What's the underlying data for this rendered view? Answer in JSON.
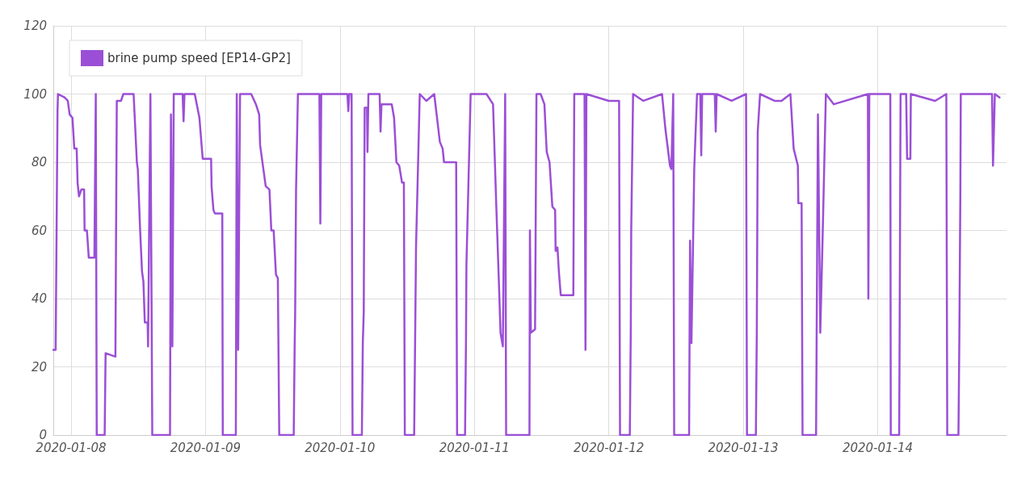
{
  "chart_data": {
    "type": "line",
    "legend": "top left",
    "grid": true,
    "marker": "none",
    "line_style": "solid",
    "xlim": [
      "2020-01-07T20:50",
      "2020-01-14T23:00"
    ],
    "xticks": [
      "2020-01-08",
      "2020-01-09",
      "2020-01-10",
      "2020-01-11",
      "2020-01-12",
      "2020-01-13",
      "2020-01-14"
    ],
    "ylim": [
      0,
      120
    ],
    "yticks": [
      0,
      20,
      40,
      60,
      80,
      100,
      120
    ],
    "series": [
      {
        "name": "brine pump speed [EP14-GP2]",
        "color": "#9b4fd6",
        "x": [
          "2020-01-07T20:50",
          "2020-01-07T21:15",
          "2020-01-07T21:35",
          "2020-01-07T21:40",
          "2020-01-07T22:50",
          "2020-01-07T23:25",
          "2020-01-07T23:45",
          "2020-01-08T00:15",
          "2020-01-08T00:35",
          "2020-01-08T01:00",
          "2020-01-08T01:10",
          "2020-01-08T01:25",
          "2020-01-08T01:50",
          "2020-01-08T02:20",
          "2020-01-08T02:25",
          "2020-01-08T02:50",
          "2020-01-08T03:10",
          "2020-01-08T04:10",
          "2020-01-08T04:25",
          "2020-01-08T04:35",
          "2020-01-08T06:00",
          "2020-01-08T06:10",
          "2020-01-08T07:55",
          "2020-01-08T08:10",
          "2020-01-08T08:55",
          "2020-01-08T09:20",
          "2020-01-08T11:10",
          "2020-01-08T11:45",
          "2020-01-08T11:55",
          "2020-01-08T12:20",
          "2020-01-08T12:40",
          "2020-01-08T12:55",
          "2020-01-08T13:10",
          "2020-01-08T13:40",
          "2020-01-08T13:45",
          "2020-01-08T14:10",
          "2020-01-08T14:30",
          "2020-01-08T17:40",
          "2020-01-08T17:50",
          "2020-01-08T18:05",
          "2020-01-08T18:20",
          "2020-01-08T19:55",
          "2020-01-08T20:05",
          "2020-01-08T20:15",
          "2020-01-08T22:05",
          "2020-01-08T22:55",
          "2020-01-08T23:30",
          "2020-01-09T01:00",
          "2020-01-09T01:05",
          "2020-01-09T01:25",
          "2020-01-09T01:40",
          "2020-01-09T03:00",
          "2020-01-09T03:05",
          "2020-01-09T05:25",
          "2020-01-09T05:35",
          "2020-01-09T05:50",
          "2020-01-09T06:10",
          "2020-01-09T08:10",
          "2020-01-09T09:00",
          "2020-01-09T09:35",
          "2020-01-09T09:45",
          "2020-01-09T10:45",
          "2020-01-09T11:25",
          "2020-01-09T11:45",
          "2020-01-09T12:10",
          "2020-01-09T12:35",
          "2020-01-09T12:55",
          "2020-01-09T13:10",
          "2020-01-09T15:45",
          "2020-01-09T15:55",
          "2020-01-09T16:00",
          "2020-01-09T16:10",
          "2020-01-09T16:30",
          "2020-01-09T20:20",
          "2020-01-09T20:30",
          "2020-01-09T20:40",
          "2020-01-10T01:20",
          "2020-01-10T01:30",
          "2020-01-10T01:40",
          "2020-01-10T02:05",
          "2020-01-10T02:15",
          "2020-01-10T03:55",
          "2020-01-10T04:05",
          "2020-01-10T04:15",
          "2020-01-10T04:25",
          "2020-01-10T04:50",
          "2020-01-10T04:55",
          "2020-01-10T05:05",
          "2020-01-10T07:05",
          "2020-01-10T07:15",
          "2020-01-10T07:25",
          "2020-01-10T09:15",
          "2020-01-10T09:40",
          "2020-01-10T10:05",
          "2020-01-10T10:35",
          "2020-01-10T11:05",
          "2020-01-10T11:25",
          "2020-01-10T11:35",
          "2020-01-10T13:15",
          "2020-01-10T13:25",
          "2020-01-10T13:35",
          "2020-01-10T14:15",
          "2020-01-10T15:25",
          "2020-01-10T16:50",
          "2020-01-10T17:50",
          "2020-01-10T18:20",
          "2020-01-10T18:35",
          "2020-01-10T20:45",
          "2020-01-10T20:55",
          "2020-01-10T22:20",
          "2020-01-10T22:30",
          "2020-01-10T22:35",
          "2020-01-10T23:20",
          "2020-01-11T02:10",
          "2020-01-11T03:20",
          "2020-01-11T03:55",
          "2020-01-11T04:20",
          "2020-01-11T04:40",
          "2020-01-11T05:05",
          "2020-01-11T05:30",
          "2020-01-11T05:40",
          "2020-01-11T09:50",
          "2020-01-11T09:55",
          "2020-01-11T10:05",
          "2020-01-11T10:50",
          "2020-01-11T11:05",
          "2020-01-11T11:50",
          "2020-01-11T12:30",
          "2020-01-11T12:55",
          "2020-01-11T13:25",
          "2020-01-11T13:55",
          "2020-01-11T14:25",
          "2020-01-11T14:30",
          "2020-01-11T14:50",
          "2020-01-11T15:05",
          "2020-01-11T15:25",
          "2020-01-11T17:40",
          "2020-01-11T17:50",
          "2020-01-11T19:40",
          "2020-01-11T19:50",
          "2020-01-11T20:00",
          "2020-01-12T00:00",
          "2020-01-12T01:50",
          "2020-01-12T02:00",
          "2020-01-12T03:45",
          "2020-01-12T03:55",
          "2020-01-12T04:00",
          "2020-01-12T04:20",
          "2020-01-12T06:10",
          "2020-01-12T09:30",
          "2020-01-12T10:05",
          "2020-01-12T10:55",
          "2020-01-12T11:10",
          "2020-01-12T11:30",
          "2020-01-12T11:40",
          "2020-01-12T14:20",
          "2020-01-12T14:30",
          "2020-01-12T14:45",
          "2020-01-12T15:15",
          "2020-01-12T15:45",
          "2020-01-12T16:20",
          "2020-01-12T16:30",
          "2020-01-12T16:40",
          "2020-01-12T18:55",
          "2020-01-12T19:05",
          "2020-01-12T19:15",
          "2020-01-12T21:55",
          "2020-01-13T00:30",
          "2020-01-13T00:40",
          "2020-01-13T02:15",
          "2020-01-13T02:25",
          "2020-01-13T02:35",
          "2020-01-13T03:00",
          "2020-01-13T05:35",
          "2020-01-13T06:50",
          "2020-01-13T08:25",
          "2020-01-13T09:00",
          "2020-01-13T09:45",
          "2020-01-13T09:50",
          "2020-01-13T10:25",
          "2020-01-13T10:35",
          "2020-01-13T13:00",
          "2020-01-13T13:20",
          "2020-01-13T13:45",
          "2020-01-13T14:10",
          "2020-01-13T14:45",
          "2020-01-13T16:10",
          "2020-01-13T22:15",
          "2020-01-13T22:20",
          "2020-01-13T22:30",
          "2020-01-14T02:15",
          "2020-01-14T02:20",
          "2020-01-14T03:50",
          "2020-01-14T03:55",
          "2020-01-14T04:05",
          "2020-01-14T05:05",
          "2020-01-14T05:15",
          "2020-01-14T05:50",
          "2020-01-14T05:55",
          "2020-01-14T10:15",
          "2020-01-14T12:15",
          "2020-01-14T12:25",
          "2020-01-14T14:25",
          "2020-01-14T14:35",
          "2020-01-14T14:45",
          "2020-01-14T14:50",
          "2020-01-14T20:25",
          "2020-01-14T20:35",
          "2020-01-14T20:55",
          "2020-01-14T21:45"
        ],
        "values": [
          25,
          25,
          95,
          100,
          99,
          98,
          94,
          93,
          84,
          84,
          74,
          70,
          72,
          72,
          60,
          60,
          52,
          52,
          100,
          0,
          0,
          24,
          23,
          98,
          98,
          100,
          100,
          80,
          78,
          60,
          48,
          45,
          33,
          33,
          26,
          100,
          0,
          0,
          94,
          26,
          100,
          100,
          92,
          100,
          100,
          93,
          81,
          81,
          73,
          66,
          65,
          65,
          0,
          0,
          100,
          25,
          100,
          100,
          97,
          94,
          85,
          73,
          72,
          60,
          60,
          47,
          46,
          0,
          0,
          26,
          35,
          72,
          100,
          100,
          62,
          100,
          100,
          95,
          100,
          100,
          0,
          0,
          27,
          36,
          96,
          96,
          83,
          100,
          100,
          89,
          97,
          97,
          93,
          80,
          79,
          74,
          74,
          0,
          0,
          27,
          55,
          100,
          98,
          100,
          86,
          84,
          80,
          80,
          0,
          0,
          27,
          50,
          100,
          100,
          97,
          67,
          47,
          30,
          26,
          100,
          0,
          0,
          60,
          30,
          31,
          100,
          100,
          97,
          83,
          80,
          67,
          66,
          54,
          55,
          48,
          41,
          41,
          100,
          100,
          25,
          100,
          98,
          98,
          0,
          0,
          30,
          60,
          100,
          98,
          100,
          90,
          79,
          78,
          100,
          0,
          0,
          57,
          27,
          78,
          100,
          100,
          82,
          100,
          100,
          89,
          100,
          98,
          100,
          0,
          0,
          30,
          89,
          100,
          98,
          98,
          100,
          84,
          79,
          68,
          68,
          0,
          0,
          94,
          30,
          58,
          100,
          97,
          100,
          40,
          100,
          100,
          0,
          0,
          30,
          100,
          100,
          81,
          81,
          100,
          98,
          100,
          0,
          0,
          30,
          70,
          100,
          100,
          79,
          100,
          99
        ]
      }
    ]
  }
}
